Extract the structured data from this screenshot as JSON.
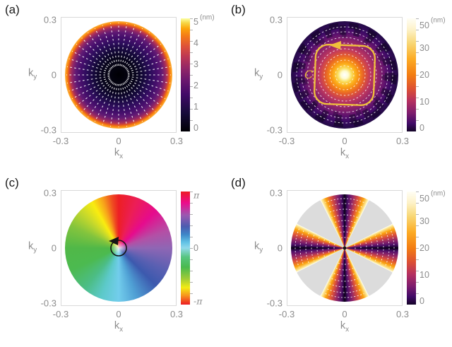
{
  "panels": [
    {
      "label": "(a)",
      "axis": {
        "ylabel_base": "k",
        "ylabel_sub": "y",
        "xlabel_base": "k",
        "xlabel_sub": "x",
        "y_ticks": [
          "0.3",
          "0",
          "-0.3"
        ],
        "x_ticks": [
          "-0.3",
          "0",
          "0.3"
        ]
      },
      "colorbar": {
        "unit": "(nm)",
        "ticks": [
          "5",
          "4",
          "3",
          "2",
          "1",
          "0"
        ]
      }
    },
    {
      "label": "(b)",
      "axis": {
        "ylabel_base": "k",
        "ylabel_sub": "y",
        "xlabel_base": "k",
        "xlabel_sub": "x",
        "y_ticks": [
          "0.3",
          "0",
          "-0.3"
        ],
        "x_ticks": [
          "-0.3",
          "0",
          "0.3"
        ]
      },
      "colorbar": {
        "unit": "(nm)",
        "ticks": [
          "50",
          "30",
          "20",
          "10",
          "0"
        ]
      },
      "contour_label": "C"
    },
    {
      "label": "(c)",
      "axis": {
        "ylabel_base": "k",
        "ylabel_sub": "y",
        "xlabel_base": "k",
        "xlabel_sub": "x",
        "y_ticks": [
          "0.3",
          "0",
          "-0.3"
        ],
        "x_ticks": [
          "-0.3",
          "0",
          "0.3"
        ]
      },
      "colorbar": {
        "ticks": [
          "π",
          "0",
          "-π"
        ]
      }
    },
    {
      "label": "(d)",
      "axis": {
        "ylabel_base": "k",
        "ylabel_sub": "y",
        "xlabel_base": "k",
        "xlabel_sub": "x",
        "y_ticks": [
          "0.3",
          "0",
          "-0.3"
        ],
        "x_ticks": [
          "-0.3",
          "0",
          "0.3"
        ]
      },
      "colorbar": {
        "unit": "(nm)",
        "ticks": [
          "50",
          "30",
          "20",
          "10",
          "0"
        ]
      }
    }
  ],
  "chart_data": [
    {
      "panel": "(a)",
      "type": "heatmap",
      "xlabel": "kx",
      "ylabel": "ky",
      "xlim": [
        -0.3,
        0.3
      ],
      "ylim": [
        -0.3,
        0.3
      ],
      "grid": false,
      "colorbar": {
        "unit": "nm",
        "range": [
          0,
          5
        ],
        "tick_labels": [
          0,
          1,
          2,
          3,
          4,
          5
        ],
        "colormap": "inferno-like: black -> purple -> orange -> cream"
      },
      "data_description": "Disk of radius ~0.28 in k-space; magnitude ~0 nm (black) at the origin rising monotonically with radius to ~5 nm (bright orange) at the rim",
      "quiver": "dense white dashed arrows pointing radially outward on ~40 spokes"
    },
    {
      "panel": "(b)",
      "type": "heatmap",
      "xlabel": "kx",
      "ylabel": "ky",
      "xlim": [
        -0.3,
        0.3
      ],
      "ylim": [
        -0.3,
        0.3
      ],
      "grid": false,
      "colorbar": {
        "unit": "nm",
        "range": [
          0,
          50
        ],
        "tick_labels": [
          0,
          10,
          20,
          30,
          50
        ],
        "colormap": "inferno-like: dark purple -> orange -> white"
      },
      "data_description": "Disk of radius ~0.3; magnitude peaks ~50 nm (white core) at the origin and decays radially to ~0 (dark purple) at the rim, with dark spiral mottling near the edge",
      "quiver": "white dashed arrows circulating counterclockwise on concentric rings",
      "annotations": [
        "yellow rounded-square closed contour around the origin with counterclockwise arrow at its top",
        "script letter C labeling the contour on its left side"
      ]
    },
    {
      "panel": "(c)",
      "type": "heatmap",
      "xlabel": "kx",
      "ylabel": "ky",
      "xlim": [
        -0.3,
        0.3
      ],
      "ylim": [
        -0.3,
        0.3
      ],
      "grid": false,
      "colorbar": {
        "range": [
          "-π",
          "π"
        ],
        "tick_labels": [
          "π",
          "0",
          "-π"
        ],
        "colormap": "cyclic rainbow hue (phase)"
      },
      "data_description": "Phase map over the disk: hue encodes azimuthal angle - red at top, magenta upper-right, violet right, blue lower-right, cyan bottom, green left, yellow upper-left",
      "annotations": [
        "small black counterclockwise circular arrow at the origin"
      ]
    },
    {
      "panel": "(d)",
      "type": "heatmap",
      "xlabel": "kx",
      "ylabel": "ky",
      "xlim": [
        -0.3,
        0.3
      ],
      "ylim": [
        -0.3,
        0.3
      ],
      "grid": false,
      "colorbar": {
        "unit": "nm",
        "range": [
          0,
          50
        ],
        "tick_labels": [
          0,
          10,
          20,
          30,
          50
        ],
        "colormap": "inferno-like: dark purple -> orange -> cream"
      },
      "data_description": "Four petal-shaped lobes along +kx, -kx, +ky and -ky (each ~55 deg wide): bright cream/orange at the lobe edges decreasing to ~0 (near-black line) along each lobe bisector; light-gray sectors between lobes contain no data",
      "quiver": "white dashed arcs circulating within each lobe"
    }
  ]
}
